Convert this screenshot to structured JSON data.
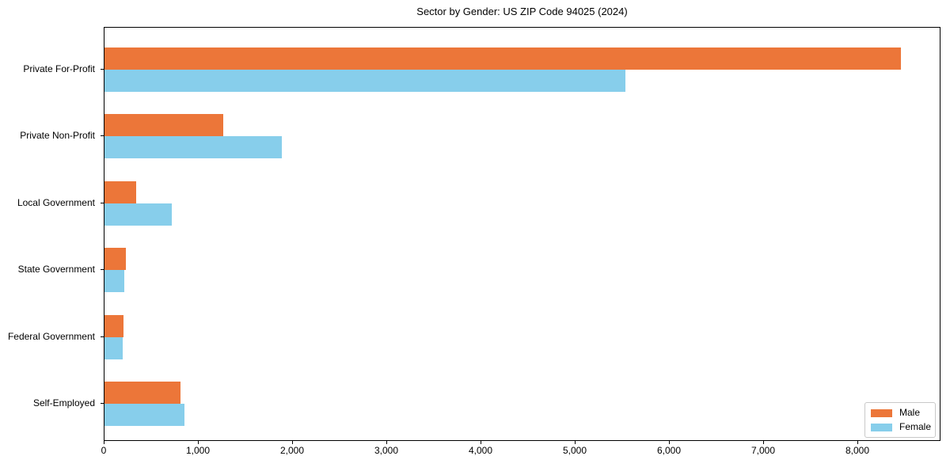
{
  "title": "Sector by Gender: US ZIP Code 94025 (2024)",
  "colors": {
    "male": "#EC7639",
    "female": "#87CEEB",
    "axis": "#000000",
    "legend_border": "#C8C8C8",
    "background": "#FFFFFF",
    "text": "#000000"
  },
  "legend": {
    "position": "lower-right",
    "entries": [
      {
        "label": "Male",
        "color": "#EC7639"
      },
      {
        "label": "Female",
        "color": "#87CEEB"
      }
    ]
  },
  "chart_data": {
    "type": "bar",
    "orientation": "horizontal",
    "title": "Sector by Gender: US ZIP Code 94025 (2024)",
    "categories": [
      "Private For-Profit",
      "Private Non-Profit",
      "Local Government",
      "State Government",
      "Federal Government",
      "Self-Employed"
    ],
    "series": [
      {
        "name": "Male",
        "color": "#EC7639",
        "values": [
          8450,
          1260,
          340,
          230,
          200,
          805
        ]
      },
      {
        "name": "Female",
        "color": "#87CEEB",
        "values": [
          5530,
          1880,
          715,
          210,
          190,
          850
        ]
      }
    ],
    "xlabel": "",
    "ylabel": "",
    "xlim": [
      0,
      8880
    ],
    "xticks": [
      0,
      1000,
      2000,
      3000,
      4000,
      5000,
      6000,
      7000,
      8000
    ],
    "xtick_labels": [
      "0",
      "1,000",
      "2,000",
      "3,000",
      "4,000",
      "5,000",
      "6,000",
      "7,000",
      "8,000"
    ],
    "grid": false,
    "legend_position": "lower right"
  }
}
